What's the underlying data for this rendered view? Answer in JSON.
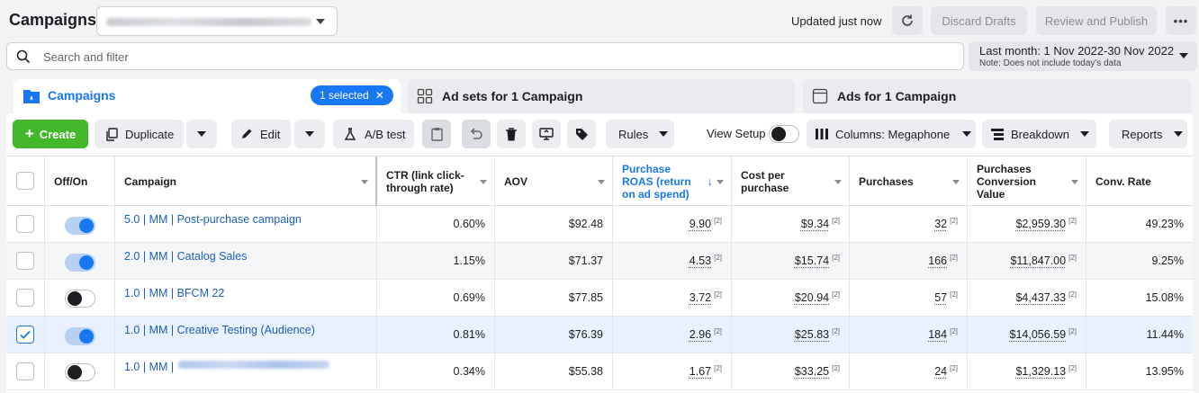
{
  "header": {
    "title": "Campaigns",
    "updated": "Updated just now",
    "discard": "Discard Drafts",
    "review": "Review and Publish",
    "more": "•••"
  },
  "search": {
    "placeholder": "Search and filter"
  },
  "daterange": {
    "label": "Last month: 1 Nov 2022-30 Nov 2022",
    "note": "Note: Does not include today's data"
  },
  "tabs": {
    "campaigns": "Campaigns",
    "selected": "1 selected",
    "adsets": "Ad sets for 1 Campaign",
    "ads": "Ads for 1 Campaign"
  },
  "toolbar": {
    "create": "Create",
    "duplicate": "Duplicate",
    "edit": "Edit",
    "abtest": "A/B test",
    "rules": "Rules",
    "view_setup": "View Setup",
    "columns": "Columns: Megaphone",
    "breakdown": "Breakdown",
    "reports": "Reports"
  },
  "columns": {
    "offon": "Off/On",
    "campaign": "Campaign",
    "ctr": "CTR (link click-through rate)",
    "aov": "AOV",
    "roas": "Purchase ROAS (return on ad spend)",
    "cpp": "Cost per purchase",
    "purchases": "Purchases",
    "pcv": "Purchases Conversion Value",
    "conv": "Conv. Rate"
  },
  "footnote": "[2]",
  "rows": [
    {
      "on": true,
      "checked": false,
      "name": "5.0 | MM | Post-purchase campaign",
      "ctr": "0.60%",
      "aov": "$92.48",
      "roas": "9.90",
      "cpp": "$9.34",
      "purchases": "32",
      "pcv": "$2,959.30",
      "conv": "49.23%"
    },
    {
      "on": true,
      "checked": false,
      "name": "2.0 | MM | Catalog Sales",
      "ctr": "1.15%",
      "aov": "$71.37",
      "roas": "4.53",
      "cpp": "$15.74",
      "purchases": "166",
      "pcv": "$11,847.00",
      "conv": "9.25%"
    },
    {
      "on": false,
      "checked": false,
      "name": "1.0 | MM | BFCM 22",
      "ctr": "0.69%",
      "aov": "$77.85",
      "roas": "3.72",
      "cpp": "$20.94",
      "purchases": "57",
      "pcv": "$4,437.33",
      "conv": "15.08%"
    },
    {
      "on": true,
      "checked": true,
      "name": "1.0 | MM | Creative Testing (Audience)",
      "ctr": "0.81%",
      "aov": "$76.39",
      "roas": "2.96",
      "cpp": "$25.83",
      "purchases": "184",
      "pcv": "$14,056.59",
      "conv": "11.44%"
    },
    {
      "on": false,
      "checked": false,
      "name": "1.0 | MM |",
      "ctr": "0.34%",
      "aov": "$55.38",
      "roas": "1.67",
      "cpp": "$33.25",
      "purchases": "24",
      "pcv": "$1,329.13",
      "conv": "13.95%"
    }
  ]
}
